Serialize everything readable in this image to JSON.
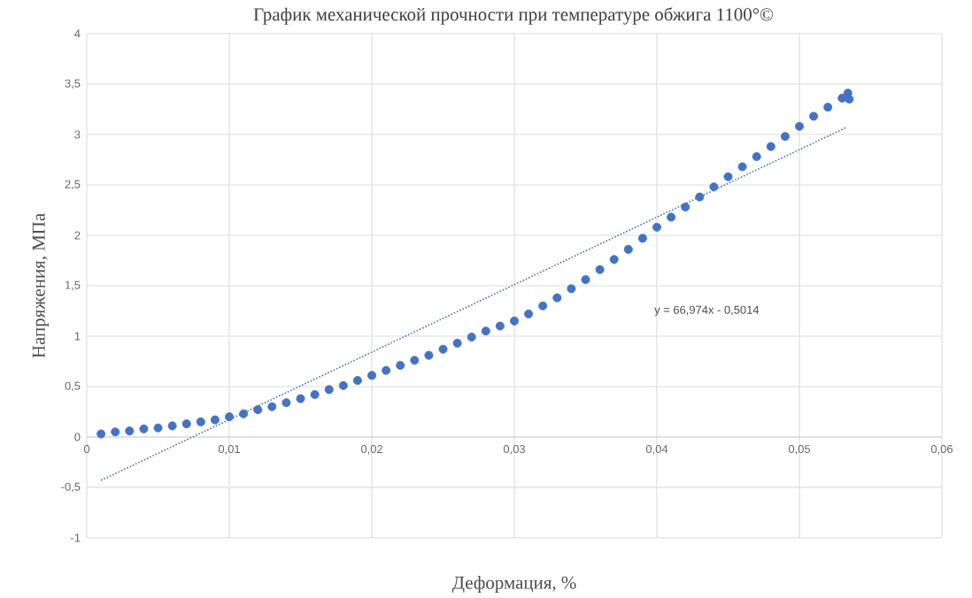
{
  "chart_data": {
    "type": "scatter",
    "title": "График механической прочности при температуре обжига 1100°©",
    "xlabel": "Деформация, %",
    "ylabel": "Напряжения, МПа",
    "xlim": [
      0,
      0.06
    ],
    "ylim": [
      -1,
      4
    ],
    "xticks": [
      0,
      {
        "value": 0.01,
        "label": "0,01"
      },
      {
        "value": 0.02,
        "label": "0,02"
      },
      {
        "value": 0.03,
        "label": "0,03"
      },
      {
        "value": 0.04,
        "label": "0,04"
      },
      {
        "value": 0.05,
        "label": "0,05"
      },
      {
        "value": 0.06,
        "label": "0,06"
      }
    ],
    "yticks": [
      -1,
      {
        "value": -0.5,
        "label": "-0,5"
      },
      0,
      {
        "value": 0.5,
        "label": "0,5"
      },
      1,
      {
        "value": 1.5,
        "label": "1,5"
      },
      2,
      {
        "value": 2.5,
        "label": "2,5"
      },
      3,
      {
        "value": 3.5,
        "label": "3,5"
      },
      4
    ],
    "grid": true,
    "series": [
      {
        "color": "#4472c4",
        "x": [
          0.001,
          0.002,
          0.003,
          0.004,
          0.005,
          0.006,
          0.007,
          0.008,
          0.009,
          0.01,
          0.011,
          0.012,
          0.013,
          0.014,
          0.015,
          0.016,
          0.017,
          0.018,
          0.019,
          0.02,
          0.021,
          0.022,
          0.023,
          0.024,
          0.025,
          0.026,
          0.027,
          0.028,
          0.029,
          0.03,
          0.031,
          0.032,
          0.033,
          0.034,
          0.035,
          0.036,
          0.037,
          0.038,
          0.039,
          0.04,
          0.041,
          0.042,
          0.043,
          0.044,
          0.045,
          0.046,
          0.047,
          0.048,
          0.049,
          0.05,
          0.051,
          0.052,
          0.053,
          0.0534,
          0.0535
        ],
        "values": [
          0.03,
          0.05,
          0.06,
          0.08,
          0.09,
          0.11,
          0.13,
          0.15,
          0.17,
          0.2,
          0.23,
          0.27,
          0.3,
          0.34,
          0.38,
          0.42,
          0.47,
          0.51,
          0.56,
          0.61,
          0.66,
          0.71,
          0.76,
          0.81,
          0.87,
          0.93,
          0.99,
          1.05,
          1.1,
          1.15,
          1.22,
          1.3,
          1.38,
          1.47,
          1.56,
          1.66,
          1.76,
          1.86,
          1.97,
          2.08,
          2.18,
          2.28,
          2.38,
          2.48,
          2.58,
          2.68,
          2.78,
          2.88,
          2.98,
          3.08,
          3.18,
          3.27,
          3.36,
          3.41,
          3.35
        ]
      },
      {
        "type": "line",
        "color": "#4472c4",
        "line_style": "dotted",
        "x": [
          0.001,
          0.0533
        ],
        "values": [
          -0.43,
          3.07
        ]
      }
    ],
    "annotations": [
      "y = 66,974x - 0,5014"
    ]
  }
}
